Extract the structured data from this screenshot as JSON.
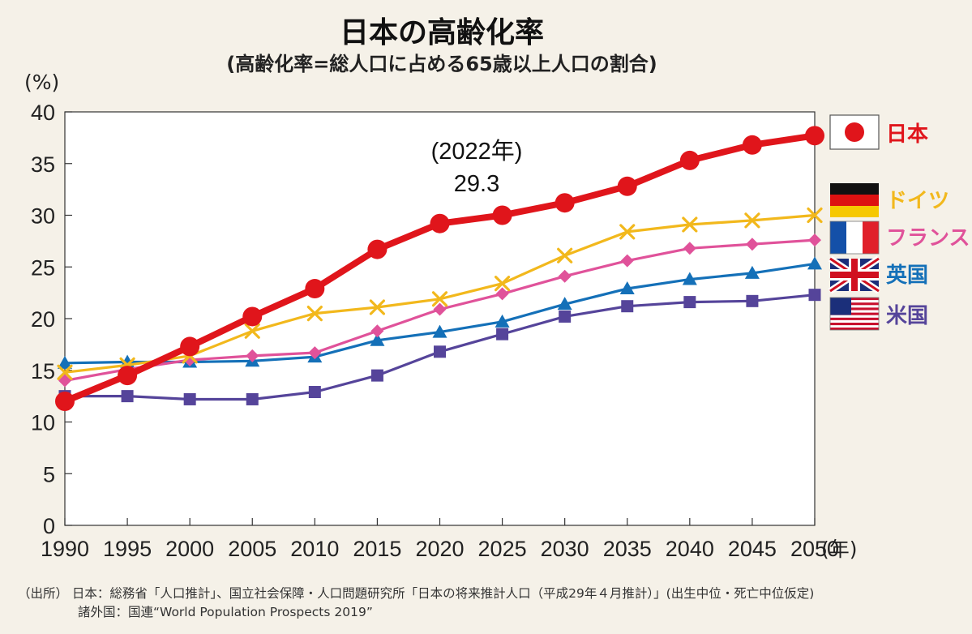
{
  "header": {
    "title": "日本の高齢化率",
    "subtitle": "(高齢化率=総人口に占める65歳以上人口の割合)"
  },
  "chart_data": {
    "type": "line",
    "title": "日本の高齢化率",
    "subtitle": "(高齢化率=総人口に占める65歳以上人口の割合)",
    "ylabel": "(%)",
    "xlabel": "(年)",
    "ylim": [
      0,
      40
    ],
    "yticks": [
      "0",
      "5",
      "10",
      "15",
      "20",
      "25",
      "30",
      "35",
      "40"
    ],
    "x": [
      "1990",
      "1995",
      "2000",
      "2005",
      "2010",
      "2015",
      "2020",
      "2025",
      "2030",
      "2035",
      "2040",
      "2045",
      "2050"
    ],
    "grid": false,
    "legend_position": "right",
    "annotation": {
      "line1": "(2022年)",
      "line2": "29.3"
    },
    "series": [
      {
        "name": "米国",
        "color": "#55449a",
        "marker": "square",
        "flag": "usa-flag",
        "values": [
          12.5,
          12.5,
          12.2,
          12.2,
          12.9,
          14.5,
          16.8,
          18.5,
          20.2,
          21.2,
          21.6,
          21.7,
          22.3
        ]
      },
      {
        "name": "英国",
        "color": "#1470b8",
        "marker": "triangle",
        "flag": "uk-flag",
        "values": [
          15.7,
          15.8,
          15.8,
          15.9,
          16.3,
          17.9,
          18.7,
          19.7,
          21.4,
          22.9,
          23.8,
          24.4,
          25.3
        ]
      },
      {
        "name": "フランス",
        "color": "#e0529a",
        "marker": "diamond",
        "flag": "france-flag",
        "values": [
          14.0,
          15.1,
          16.0,
          16.4,
          16.7,
          18.8,
          20.9,
          22.4,
          24.1,
          25.6,
          26.8,
          27.2,
          27.6
        ]
      },
      {
        "name": "ドイツ",
        "color": "#f2b81c",
        "marker": "x",
        "flag": "germany-flag",
        "values": [
          14.8,
          15.5,
          16.4,
          18.8,
          20.5,
          21.1,
          21.9,
          23.4,
          26.1,
          28.4,
          29.1,
          29.5,
          30.0
        ]
      },
      {
        "name": "日本",
        "color": "#e0151b",
        "marker": "circle",
        "flag": "japan-flag",
        "values": [
          12.0,
          14.5,
          17.3,
          20.2,
          22.9,
          26.7,
          29.2,
          30.0,
          31.2,
          32.8,
          35.3,
          36.8,
          37.7
        ]
      }
    ]
  },
  "legend": {
    "japan": "日本",
    "germany": "ドイツ",
    "france": "フランス",
    "uk": "英国",
    "usa": "米国"
  },
  "source": {
    "line1": "（出所） 日本：総務省「人口推計」、国立社会保障・人口問題研究所「日本の将来推計人口（平成29年４月推計）」(出生中位・死亡中位仮定)",
    "line2": "諸外国：国連“World Population Prospects 2019”"
  },
  "colors": {
    "background": "#f5f1e8",
    "plot_background": "#ffffff",
    "japan": "#e0151b",
    "germany": "#f2b81c",
    "france": "#e0529a",
    "uk": "#1470b8",
    "usa": "#55449a"
  }
}
